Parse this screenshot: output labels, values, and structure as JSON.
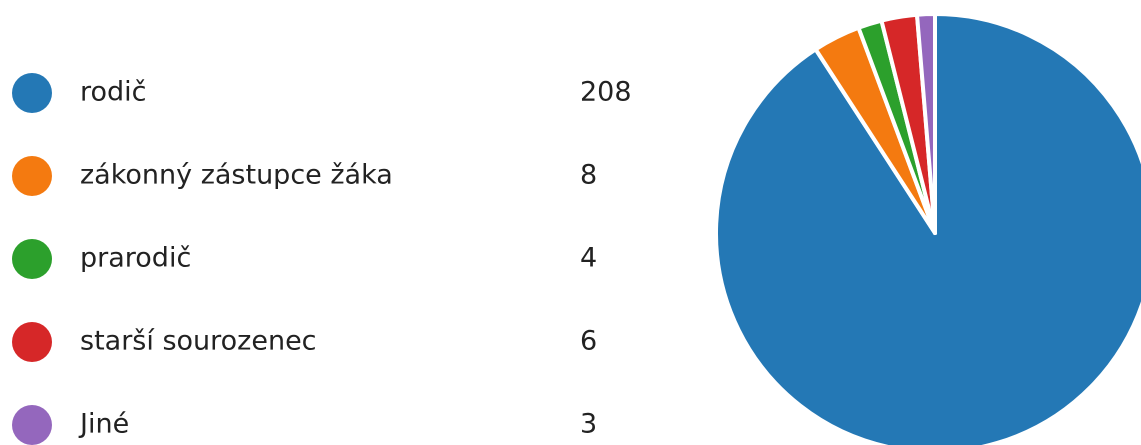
{
  "chart_data": {
    "type": "pie",
    "categories": [
      "rodič",
      "zákonný zástupce žáka",
      "prarodič",
      "starší sourozenec",
      "Jiné"
    ],
    "values": [
      208,
      8,
      4,
      6,
      3
    ],
    "colors": [
      "#2478b5",
      "#f47a10",
      "#2ca02c",
      "#d62728",
      "#9467bd"
    ]
  }
}
